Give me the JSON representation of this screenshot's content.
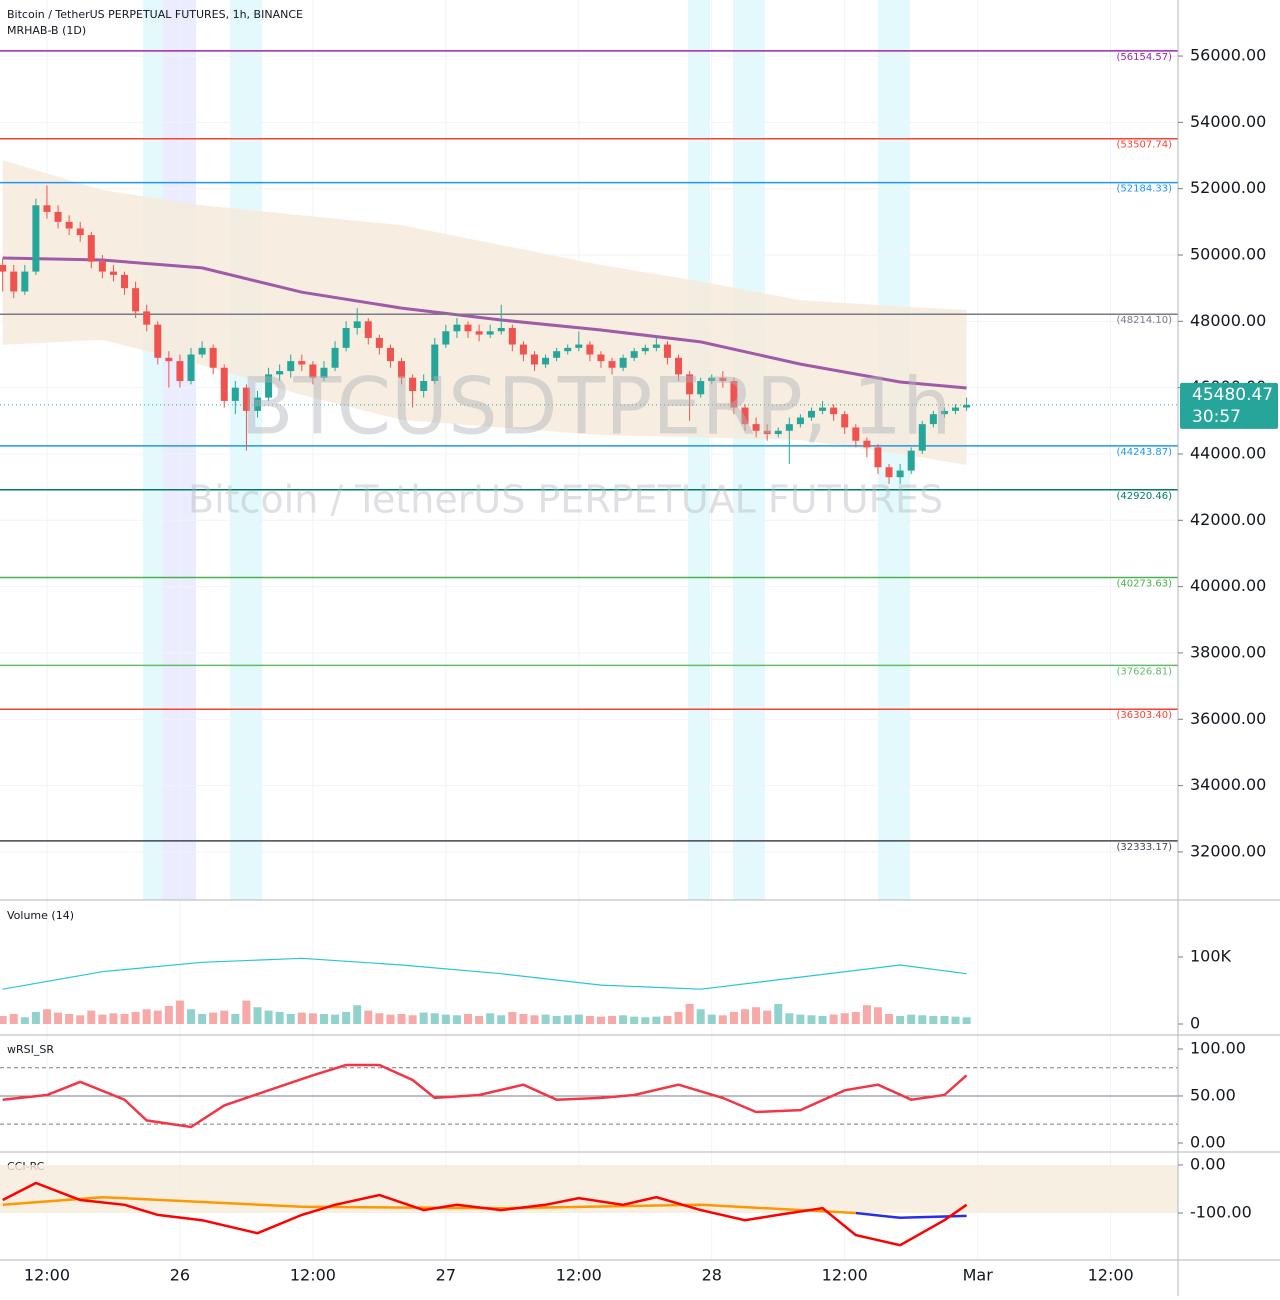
{
  "header": {
    "title": "Bitcoin / TetherUS PERPETUAL FUTURES, 1h, BINANCE",
    "indicator": "MRHAB-B (1D)"
  },
  "watermark": {
    "symbol": "BTCUSDTPERP, 1h",
    "description": "Bitcoin / TetherUS PERPETUAL FUTURES"
  },
  "chart_data": [
    {
      "type": "candlestick",
      "x": [
        8,
        9,
        10,
        11,
        12,
        13,
        14,
        15,
        16,
        17,
        18,
        19,
        20,
        21,
        22,
        23,
        24,
        25,
        26,
        27,
        28,
        29,
        30,
        31,
        32,
        33,
        34,
        35,
        36,
        37,
        38,
        39,
        40,
        41,
        42,
        43,
        44,
        45,
        46,
        47,
        48,
        49,
        50,
        51,
        52,
        53,
        54,
        55,
        56,
        57,
        58,
        59,
        60,
        61,
        62,
        63,
        64,
        65,
        66,
        67,
        68,
        69,
        70,
        71,
        72,
        73,
        74,
        75,
        76,
        77,
        78,
        79,
        80,
        81,
        82,
        83,
        84,
        85,
        86,
        87,
        88,
        89,
        90,
        91,
        92,
        93,
        94,
        95
      ],
      "candles": [
        [
          49700,
          49900,
          48900,
          49500
        ],
        [
          49500,
          49700,
          48700,
          48900
        ],
        [
          48900,
          49700,
          48800,
          49500
        ],
        [
          49500,
          51700,
          49400,
          51500
        ],
        [
          51500,
          52100,
          51100,
          51300
        ],
        [
          51300,
          51500,
          50800,
          51000
        ],
        [
          51000,
          51200,
          50600,
          50800
        ],
        [
          50800,
          51000,
          50400,
          50600
        ],
        [
          50600,
          50700,
          49600,
          49800
        ],
        [
          49800,
          50000,
          49300,
          49500
        ],
        [
          49500,
          49700,
          49200,
          49400
        ],
        [
          49400,
          49500,
          48800,
          49000
        ],
        [
          49000,
          49200,
          48100,
          48300
        ],
        [
          48300,
          48500,
          47700,
          47900
        ],
        [
          47900,
          48000,
          46700,
          46900
        ],
        [
          46900,
          47100,
          46000,
          46800
        ],
        [
          46800,
          47000,
          46000,
          46200
        ],
        [
          46200,
          47200,
          46100,
          47000
        ],
        [
          47000,
          47400,
          46900,
          47200
        ],
        [
          47200,
          47300,
          46400,
          46600
        ],
        [
          46600,
          46700,
          45400,
          45600
        ],
        [
          45600,
          46200,
          45200,
          46000
        ],
        [
          46000,
          46100,
          44100,
          45300
        ],
        [
          45300,
          45900,
          45100,
          45700
        ],
        [
          45700,
          46600,
          45600,
          46400
        ],
        [
          46400,
          46700,
          46200,
          46500
        ],
        [
          46500,
          47000,
          46300,
          46800
        ],
        [
          46800,
          47000,
          46500,
          46700
        ],
        [
          46700,
          46800,
          46100,
          46300
        ],
        [
          46300,
          46800,
          46200,
          46600
        ],
        [
          46600,
          47400,
          46500,
          47200
        ],
        [
          47200,
          48000,
          47100,
          47800
        ],
        [
          47800,
          48400,
          47600,
          48000
        ],
        [
          48000,
          48100,
          47300,
          47500
        ],
        [
          47500,
          47600,
          47000,
          47200
        ],
        [
          47200,
          47300,
          46600,
          46800
        ],
        [
          46800,
          46900,
          46100,
          46300
        ],
        [
          46300,
          46400,
          45400,
          45900
        ],
        [
          45900,
          46400,
          45700,
          46200
        ],
        [
          46200,
          47500,
          46100,
          47300
        ],
        [
          47300,
          47900,
          47200,
          47700
        ],
        [
          47700,
          48100,
          47500,
          47900
        ],
        [
          47900,
          48000,
          47500,
          47700
        ],
        [
          47700,
          47900,
          47400,
          47600
        ],
        [
          47600,
          47900,
          47500,
          47700
        ],
        [
          47700,
          48500,
          47600,
          47800
        ],
        [
          47800,
          47900,
          47100,
          47300
        ],
        [
          47300,
          47400,
          46800,
          47000
        ],
        [
          47000,
          47100,
          46500,
          46700
        ],
        [
          46700,
          47000,
          46600,
          46900
        ],
        [
          46900,
          47200,
          46800,
          47100
        ],
        [
          47100,
          47300,
          47000,
          47200
        ],
        [
          47200,
          47700,
          47100,
          47300
        ],
        [
          47300,
          47400,
          46800,
          47000
        ],
        [
          47000,
          47100,
          46600,
          46800
        ],
        [
          46800,
          46900,
          46400,
          46600
        ],
        [
          46600,
          47000,
          46500,
          46900
        ],
        [
          46900,
          47200,
          46800,
          47100
        ],
        [
          47100,
          47300,
          47000,
          47200
        ],
        [
          47200,
          47500,
          47100,
          47300
        ],
        [
          47300,
          47400,
          46700,
          46900
        ],
        [
          46900,
          47000,
          46200,
          46400
        ],
        [
          46400,
          46500,
          45000,
          45800
        ],
        [
          45800,
          46300,
          45700,
          46200
        ],
        [
          46200,
          46400,
          46100,
          46300
        ],
        [
          46300,
          46500,
          46000,
          46200
        ],
        [
          46200,
          46300,
          45200,
          45400
        ],
        [
          45400,
          45500,
          44700,
          44900
        ],
        [
          44900,
          45100,
          44500,
          44700
        ],
        [
          44700,
          44900,
          44400,
          44600
        ],
        [
          44600,
          44800,
          44500,
          44700
        ],
        [
          44700,
          45100,
          43700,
          44900
        ],
        [
          44900,
          45200,
          44800,
          45100
        ],
        [
          45100,
          45400,
          45000,
          45300
        ],
        [
          45300,
          45600,
          45200,
          45400
        ],
        [
          45400,
          45500,
          45000,
          45200
        ],
        [
          45200,
          45300,
          44600,
          44800
        ],
        [
          44800,
          44900,
          44200,
          44400
        ],
        [
          44400,
          44500,
          43900,
          44200
        ],
        [
          44200,
          44300,
          43400,
          43600
        ],
        [
          43600,
          43700,
          43100,
          43300
        ],
        [
          43300,
          43700,
          43100,
          43500
        ],
        [
          43500,
          44200,
          43400,
          44100
        ],
        [
          44100,
          45000,
          44000,
          44900
        ],
        [
          44900,
          45300,
          44800,
          45200
        ],
        [
          45200,
          45400,
          45100,
          45300
        ],
        [
          45300,
          45500,
          45200,
          45400
        ],
        [
          45400,
          45700,
          45300,
          45480.47
        ]
      ],
      "up_color": "#26a69a",
      "down_color": "#ef5350",
      "xlim": [
        7.76,
        114.08
      ],
      "xticks": [
        {
          "value": 12,
          "label": "12:00"
        },
        {
          "value": 24,
          "label": "26"
        },
        {
          "value": 36,
          "label": "12:00"
        },
        {
          "value": 48,
          "label": "27"
        },
        {
          "value": 60,
          "label": "12:00"
        },
        {
          "value": 72,
          "label": "28"
        },
        {
          "value": 84,
          "label": "12:00"
        },
        {
          "value": 96,
          "label": "Mar"
        },
        {
          "value": 108,
          "label": "12:00"
        }
      ],
      "ylim": [
        30550,
        57690
      ],
      "yticks": [
        {
          "value": 32000,
          "label": "32000.00"
        },
        {
          "value": 34000,
          "label": "34000.00"
        },
        {
          "value": 36000,
          "label": "36000.00"
        },
        {
          "value": 38000,
          "label": "38000.00"
        },
        {
          "value": 40000,
          "label": "40000.00"
        },
        {
          "value": 42000,
          "label": "42000.00"
        },
        {
          "value": 44000,
          "label": "44000.00"
        },
        {
          "value": 46000,
          "label": "46000.00"
        },
        {
          "value": 48000,
          "label": "48000.00"
        },
        {
          "value": 50000,
          "label": "50000.00"
        },
        {
          "value": 52000,
          "label": "52000.00"
        },
        {
          "value": 54000,
          "label": "54000.00"
        },
        {
          "value": 56000,
          "label": "56000.00"
        }
      ],
      "grid": true,
      "levels": [
        {
          "value": 56154.57,
          "label": "(56154.57)",
          "color": "#9c27b0"
        },
        {
          "value": 53507.74,
          "label": "(53507.74)",
          "color": "#f44336"
        },
        {
          "value": 52184.33,
          "label": "(52184.33)",
          "color": "#2196f3"
        },
        {
          "value": 48214.1,
          "label": "(48214.10)",
          "color": "#787b86"
        },
        {
          "value": 44243.87,
          "label": "(44243.87)",
          "color": "#2196f3"
        },
        {
          "value": 42920.46,
          "label": "(42920.46)",
          "color": "#00796b"
        },
        {
          "value": 40273.63,
          "label": "(40273.63)",
          "color": "#4caf50"
        },
        {
          "value": 37626.81,
          "label": "(37626.81)",
          "color": "#66bb6a"
        },
        {
          "value": 36303.4,
          "label": "(36303.40)",
          "color": "#f44336"
        },
        {
          "value": 32333.17,
          "label": "(32333.17)",
          "color": "#434651"
        }
      ],
      "last_price": 45480.47,
      "countdown": "30:57",
      "last_color": "#26a69a",
      "band": {
        "x": [
          8,
          17,
          26,
          35,
          44,
          53,
          62,
          71,
          80,
          89,
          95
        ],
        "upper": [
          52860,
          51960,
          51500,
          51200,
          50900,
          50300,
          49700,
          49200,
          48640,
          48450,
          48340
        ],
        "lower": [
          47290,
          47440,
          46680,
          45780,
          45030,
          44800,
          44570,
          44500,
          44420,
          44000,
          43670
        ],
        "color": "#f6ebdc"
      },
      "ma": {
        "x": [
          8,
          17,
          26,
          35,
          44,
          53,
          62,
          71,
          80,
          89,
          95
        ],
        "values": [
          49910,
          49850,
          49610,
          48880,
          48400,
          48040,
          47740,
          47380,
          46710,
          46170,
          45990
        ],
        "color": "#a05aa8"
      }
    },
    {
      "type": "volume",
      "title": "Volume (14)",
      "values": [
        12000,
        15000,
        10000,
        18000,
        22000,
        17000,
        15000,
        13000,
        20000,
        14000,
        16000,
        15000,
        18000,
        22000,
        20000,
        27000,
        35000,
        22000,
        15000,
        17000,
        20000,
        15000,
        35000,
        25000,
        20000,
        18000,
        15000,
        17000,
        16000,
        15000,
        14000,
        18000,
        28000,
        20000,
        16000,
        14000,
        15000,
        13000,
        17000,
        16000,
        14000,
        13000,
        15000,
        12000,
        16000,
        13000,
        18000,
        15000,
        13000,
        14000,
        12000,
        13000,
        14000,
        12000,
        11000,
        12000,
        13000,
        11000,
        10000,
        11000,
        12000,
        18000,
        30000,
        22000,
        14000,
        13000,
        18000,
        22000,
        25000,
        20000,
        30000,
        16000,
        14000,
        13000,
        12000,
        14000,
        16000,
        18000,
        28000,
        25000,
        15000,
        12000,
        14000,
        13000,
        12000,
        12000,
        11000,
        10000
      ],
      "ylim": [
        -16400,
        185000
      ],
      "yticks": [
        0,
        {
          "value": 100000,
          "label": "100K"
        }
      ],
      "ma": {
        "x": [
          8,
          17,
          26,
          35,
          44,
          53,
          62,
          71,
          80,
          89,
          95
        ],
        "values": [
          52000,
          78000,
          92000,
          98000,
          88000,
          75000,
          58000,
          52000,
          70000,
          88000,
          75000
        ],
        "color": "#26c6da"
      }
    },
    {
      "type": "line",
      "title": "wRSI_SR",
      "ylim": [
        -9.6,
        113.8
      ],
      "yticks": [
        {
          "value": 0,
          "label": "0.00"
        },
        {
          "value": 50,
          "label": "50.00"
        },
        {
          "value": 100,
          "label": "100.00"
        }
      ],
      "levels": [
        20,
        50,
        80
      ],
      "series": [
        {
          "color": "#f23645",
          "x": [
            8,
            12,
            15,
            19,
            21,
            25,
            28,
            32,
            36,
            39,
            42,
            45,
            47,
            51,
            55,
            58,
            62,
            65,
            69,
            73,
            76,
            80,
            84,
            87,
            90,
            93,
            95
          ],
          "values": [
            46,
            51,
            65,
            46,
            24,
            17,
            40,
            56,
            72,
            83,
            83,
            67,
            48,
            51,
            62,
            46,
            48,
            51,
            62,
            48,
            33,
            35,
            56,
            62,
            46,
            51,
            72
          ]
        }
      ]
    },
    {
      "type": "line",
      "title": "CCI-RC",
      "ylim": [
        -197.9,
        25
      ],
      "yticks": [
        {
          "value": 0,
          "label": "0.00"
        },
        {
          "value": -100,
          "label": "-100.00"
        }
      ],
      "series": [
        {
          "color": "#ff9800",
          "x": [
            8,
            17,
            35,
            53,
            71,
            85
          ],
          "values": [
            -83,
            -67,
            -87,
            -90,
            -83,
            -100
          ]
        },
        {
          "color": "#2a2ee6",
          "x": [
            85,
            89,
            95
          ],
          "values": [
            -100,
            -110,
            -106
          ]
        },
        {
          "color": "#ff0000",
          "x": [
            8,
            11,
            15,
            19,
            22,
            26,
            31,
            35,
            38,
            42,
            46,
            49,
            53,
            57,
            60,
            64,
            67,
            71,
            75,
            78,
            82,
            85,
            89,
            93,
            95
          ],
          "values": [
            -73,
            -37.5,
            -73,
            -83,
            -104,
            -115,
            -142,
            -104,
            -83,
            -62.5,
            -94,
            -83,
            -94,
            -83,
            -69,
            -83,
            -67,
            -94,
            -115,
            -104,
            -90,
            -146,
            -167,
            -115,
            -83
          ]
        }
      ]
    }
  ]
}
